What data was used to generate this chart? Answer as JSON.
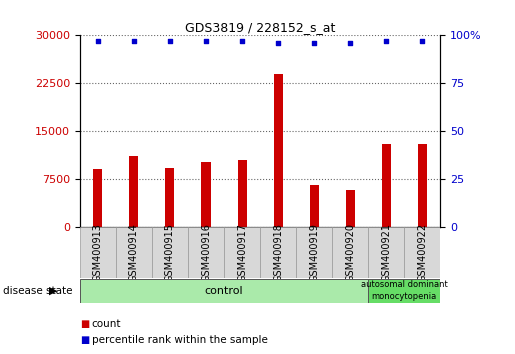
{
  "title": "GDS3819 / 228152_s_at",
  "samples": [
    "GSM400913",
    "GSM400914",
    "GSM400915",
    "GSM400916",
    "GSM400917",
    "GSM400918",
    "GSM400919",
    "GSM400920",
    "GSM400921",
    "GSM400922"
  ],
  "counts": [
    9000,
    11000,
    9200,
    10200,
    10500,
    24000,
    6500,
    5800,
    13000,
    13000
  ],
  "percentile_ranks": [
    97,
    97,
    97,
    97,
    97,
    96,
    96,
    96,
    97,
    97
  ],
  "bar_color": "#cc0000",
  "dot_color": "#0000cc",
  "left_ylim": [
    0,
    30000
  ],
  "right_ylim": [
    0,
    100
  ],
  "left_yticks": [
    0,
    7500,
    15000,
    22500,
    30000
  ],
  "right_yticks": [
    0,
    25,
    50,
    75,
    100
  ],
  "control_count": 8,
  "disease_count": 2,
  "control_label": "control",
  "disease_label": "autosomal dominant\nmonocytopenia",
  "control_color": "#aaeaaa",
  "disease_color": "#66dd66",
  "xtick_bg": "#d8d8d8",
  "disease_state_label": "disease state",
  "legend_count_label": "count",
  "legend_pct_label": "percentile rank within the sample",
  "background_color": "#ffffff",
  "tick_label_color_left": "#cc0000",
  "tick_label_color_right": "#0000cc",
  "grid_linestyle": "dotted"
}
